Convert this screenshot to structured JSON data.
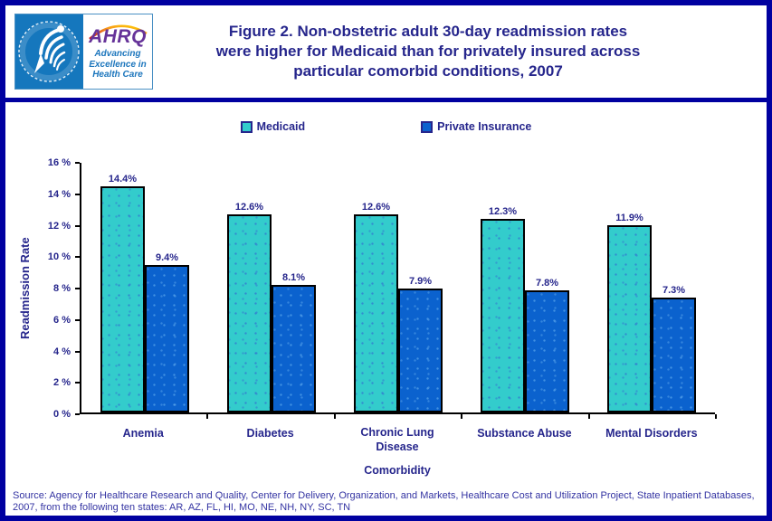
{
  "header": {
    "logo": {
      "acronym": "AHRQ",
      "tagline_lines": [
        "Advancing",
        "Excellence in",
        "Health Care"
      ],
      "hhs_seal_text": "DEPARTMENT OF HEALTH & HUMAN SERVICES - USA"
    },
    "title_lines": [
      "Figure 2. Non-obstetric adult 30-day readmission rates",
      "were higher for Medicaid than for privately insured across",
      "particular comorbid conditions, 2007"
    ]
  },
  "chart_data": {
    "type": "bar",
    "title": "Figure 2. Non-obstetric adult 30-day readmission rates were higher for Medicaid than for privately insured across particular comorbid conditions, 2007",
    "categories": [
      "Anemia",
      "Diabetes",
      "Chronic Lung Disease",
      "Substance Abuse",
      "Mental Disorders"
    ],
    "series": [
      {
        "name": "Medicaid",
        "color": "#33CCCC",
        "values": [
          14.4,
          12.6,
          12.6,
          12.3,
          11.9
        ],
        "labels": [
          "14.4%",
          "12.6%",
          "12.6%",
          "12.3%",
          "11.9%"
        ]
      },
      {
        "name": "Private Insurance",
        "color": "#0B62CE",
        "values": [
          9.4,
          8.1,
          7.9,
          7.8,
          7.3
        ],
        "labels": [
          "9.4%",
          "8.1%",
          "7.9%",
          "7.8%",
          "7.3%"
        ]
      }
    ],
    "xlabel": "Comorbidity",
    "ylabel": "Readmission Rate",
    "ylim": [
      0,
      16
    ],
    "yticks": [
      0,
      2,
      4,
      6,
      8,
      10,
      12,
      14,
      16
    ],
    "ytick_labels": [
      "0 %",
      "2 %",
      "4 %",
      "6 %",
      "8 %",
      "10 %",
      "12 %",
      "14 %",
      "16 %"
    ],
    "legend_position": "top-center",
    "grid": false,
    "bar_value_labels_shown": true
  },
  "footer": {
    "source_text": "Source: Agency for Healthcare Research and Quality, Center for Delivery, Organization, and Markets, Healthcare Cost and Utilization Project, State Inpatient Databases, 2007, from the following ten states: AR, AZ, FL, HI, MO, NE, NH, NY, SC, TN"
  },
  "colors": {
    "frame_navy": "#0000A0",
    "text_navy": "#26268C",
    "medicaid_teal": "#33CCCC",
    "private_insurance_blue": "#0B62CE",
    "source_text_blue": "#3333A2",
    "hhs_blue": "#1577BD",
    "ahrq_purple": "#663399",
    "ahrq_tagline_blue": "#1B75BC"
  }
}
